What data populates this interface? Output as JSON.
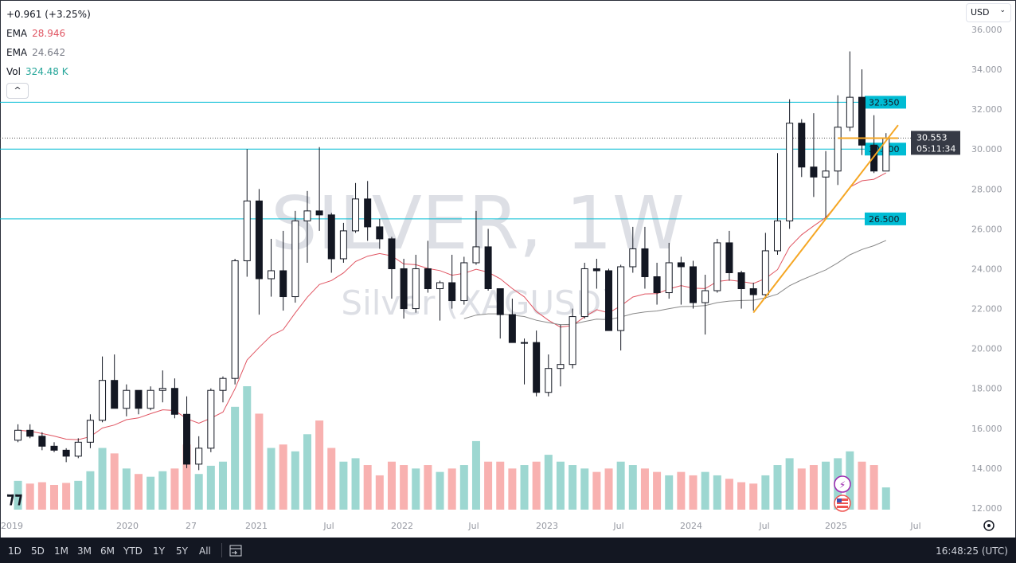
{
  "legend": {
    "change": "+0.961 (+3.25%)",
    "ema1_label": "EMA",
    "ema1_value": "28.946",
    "ema2_label": "EMA",
    "ema2_value": "24.642",
    "vol_label": "Vol",
    "vol_value": "324.48 K",
    "collapse": "^"
  },
  "currency": "USD",
  "watermark": {
    "title": "SILVER, 1W",
    "subtitle": "Silver (XAGUSD)"
  },
  "price_labels": {
    "last": "30.553",
    "countdown": "05:11:34",
    "levels": [
      "32.350",
      "30.000",
      "26.500"
    ]
  },
  "bottombar": {
    "ranges": [
      "1D",
      "5D",
      "1M",
      "3M",
      "6M",
      "YTD",
      "1Y",
      "5Y",
      "All"
    ],
    "clock": "16:48:25 (UTC)"
  },
  "colors": {
    "up": "#26a69a",
    "down": "#ef5350",
    "candle": "#131722",
    "ema_fast": "#e05562",
    "ema_slow": "#888888",
    "level": "#00bcd4",
    "trend": "#f5a623"
  },
  "chart_data": {
    "type": "candlestick",
    "title": "SILVER, 1W",
    "yticks": [
      "36.000",
      "34.000",
      "32.000",
      "30.000",
      "28.000",
      "26.000",
      "24.000",
      "22.000",
      "20.000",
      "18.000",
      "16.000",
      "14.000",
      "12.000"
    ],
    "ylim": [
      12,
      36
    ],
    "xticks": [
      "2019",
      "2020",
      "27",
      "2021",
      "Jul",
      "2022",
      "Jul",
      "2023",
      "Jul",
      "2024",
      "Jul",
      "2025",
      "Jul"
    ],
    "levels": [
      32.35,
      30.0,
      26.5
    ],
    "last_price": 30.553,
    "trendline": {
      "from": [
        "2024-02",
        21.8
      ],
      "to": [
        "2025-02",
        31.2
      ]
    },
    "resistance_segment": {
      "price": 30.55,
      "from": "2024-09",
      "to": "2025-02"
    },
    "columns": [
      "month",
      "open",
      "high",
      "low",
      "close",
      "volume_k"
    ],
    "candles": [
      [
        "2019-01",
        15.4,
        16.2,
        15.3,
        15.9,
        420
      ],
      [
        "2019-02",
        15.9,
        16.2,
        15.5,
        15.6,
        380
      ],
      [
        "2019-03",
        15.6,
        15.8,
        14.9,
        15.1,
        400
      ],
      [
        "2019-04",
        15.1,
        15.3,
        14.8,
        14.9,
        360
      ],
      [
        "2019-05",
        14.9,
        15.0,
        14.3,
        14.6,
        390
      ],
      [
        "2019-06",
        14.6,
        15.5,
        14.5,
        15.3,
        420
      ],
      [
        "2019-07",
        15.3,
        16.7,
        15.0,
        16.4,
        560
      ],
      [
        "2019-08",
        16.4,
        19.6,
        16.3,
        18.4,
        900
      ],
      [
        "2019-09",
        18.4,
        19.7,
        17.0,
        17.0,
        820
      ],
      [
        "2019-10",
        17.0,
        18.2,
        16.6,
        17.9,
        600
      ],
      [
        "2019-11",
        17.9,
        17.9,
        16.7,
        17.0,
        520
      ],
      [
        "2019-12",
        17.0,
        18.1,
        16.9,
        17.9,
        480
      ],
      [
        "2020-01",
        17.9,
        18.9,
        17.3,
        18.0,
        560
      ],
      [
        "2020-02",
        18.0,
        18.5,
        16.5,
        16.7,
        600
      ],
      [
        "2020-03",
        16.7,
        17.6,
        14.0,
        14.2,
        950
      ],
      [
        "2020-04",
        14.2,
        15.6,
        13.9,
        15.0,
        520
      ],
      [
        "2020-05",
        15.0,
        18.0,
        14.8,
        17.9,
        640
      ],
      [
        "2020-06",
        17.9,
        18.6,
        17.3,
        18.5,
        700
      ],
      [
        "2020-07",
        18.5,
        24.5,
        18.2,
        24.4,
        1500
      ],
      [
        "2020-08",
        24.4,
        30.0,
        23.6,
        27.4,
        1800
      ],
      [
        "2020-09",
        27.4,
        28.0,
        21.7,
        23.5,
        1400
      ],
      [
        "2020-10",
        23.5,
        25.5,
        22.6,
        23.9,
        900
      ],
      [
        "2020-11",
        23.9,
        25.9,
        21.9,
        22.6,
        950
      ],
      [
        "2020-12",
        22.6,
        26.9,
        22.3,
        26.4,
        850
      ],
      [
        "2021-01",
        26.4,
        27.9,
        24.3,
        26.9,
        1100
      ],
      [
        "2021-02",
        26.9,
        30.1,
        25.9,
        26.7,
        1300
      ],
      [
        "2021-03",
        26.7,
        26.8,
        23.8,
        24.5,
        900
      ],
      [
        "2021-04",
        24.5,
        26.3,
        24.3,
        25.9,
        700
      ],
      [
        "2021-05",
        25.9,
        28.3,
        25.8,
        27.5,
        750
      ],
      [
        "2021-06",
        27.5,
        28.4,
        25.4,
        26.1,
        650
      ],
      [
        "2021-07",
        26.1,
        26.5,
        25.0,
        25.5,
        500
      ],
      [
        "2021-08",
        25.5,
        25.6,
        22.5,
        24.0,
        700
      ],
      [
        "2021-09",
        24.0,
        24.5,
        21.5,
        22.0,
        650
      ],
      [
        "2021-10",
        22.0,
        24.7,
        21.8,
        24.0,
        600
      ],
      [
        "2021-11",
        24.0,
        25.4,
        22.8,
        23.0,
        650
      ],
      [
        "2021-12",
        23.0,
        23.4,
        21.4,
        23.3,
        550
      ],
      [
        "2022-01",
        23.3,
        24.7,
        22.0,
        22.4,
        600
      ],
      [
        "2022-02",
        22.4,
        24.6,
        22.2,
        24.3,
        650
      ],
      [
        "2022-03",
        24.3,
        26.9,
        24.2,
        25.1,
        1000
      ],
      [
        "2022-04",
        25.1,
        26.0,
        22.9,
        23.0,
        700
      ],
      [
        "2022-05",
        23.0,
        23.0,
        20.5,
        21.7,
        700
      ],
      [
        "2022-06",
        21.7,
        22.5,
        20.5,
        20.3,
        600
      ],
      [
        "2022-07",
        20.3,
        20.5,
        18.2,
        20.3,
        650
      ],
      [
        "2022-08",
        20.3,
        20.9,
        17.6,
        17.8,
        700
      ],
      [
        "2022-09",
        17.8,
        19.7,
        17.6,
        19.0,
        800
      ],
      [
        "2022-10",
        19.0,
        21.2,
        18.1,
        19.2,
        700
      ],
      [
        "2022-11",
        19.2,
        22.0,
        19.0,
        21.6,
        650
      ],
      [
        "2022-12",
        21.6,
        24.3,
        21.5,
        24.0,
        600
      ],
      [
        "2023-01",
        24.0,
        24.5,
        23.0,
        23.9,
        550
      ],
      [
        "2023-02",
        23.9,
        24.0,
        21.0,
        20.9,
        600
      ],
      [
        "2023-03",
        20.9,
        24.2,
        19.9,
        24.1,
        700
      ],
      [
        "2023-04",
        24.1,
        26.1,
        23.8,
        25.0,
        650
      ],
      [
        "2023-05",
        25.0,
        26.1,
        23.0,
        23.6,
        600
      ],
      [
        "2023-06",
        23.6,
        24.3,
        22.2,
        22.8,
        550
      ],
      [
        "2023-07",
        22.8,
        25.3,
        22.5,
        24.3,
        500
      ],
      [
        "2023-08",
        24.3,
        24.6,
        22.2,
        24.1,
        550
      ],
      [
        "2023-09",
        24.1,
        24.4,
        22.0,
        22.3,
        500
      ],
      [
        "2023-10",
        22.3,
        23.7,
        20.7,
        22.9,
        550
      ],
      [
        "2023-11",
        22.9,
        25.5,
        22.8,
        25.3,
        500
      ],
      [
        "2023-12",
        25.3,
        25.9,
        23.4,
        23.8,
        450
      ],
      [
        "2024-01",
        23.8,
        23.9,
        22.0,
        23.0,
        400
      ],
      [
        "2024-02",
        23.0,
        23.3,
        21.9,
        22.7,
        380
      ],
      [
        "2024-03",
        22.7,
        25.8,
        22.5,
        24.9,
        500
      ],
      [
        "2024-04",
        24.9,
        29.8,
        24.7,
        26.4,
        650
      ],
      [
        "2024-05",
        26.4,
        32.5,
        26.0,
        31.3,
        750
      ],
      [
        "2024-06",
        31.3,
        31.5,
        28.6,
        29.1,
        600
      ],
      [
        "2024-07",
        29.1,
        31.8,
        27.6,
        28.6,
        650
      ],
      [
        "2024-08",
        28.6,
        29.9,
        26.5,
        28.9,
        700
      ],
      [
        "2024-09",
        28.9,
        32.7,
        28.2,
        31.1,
        750
      ],
      [
        "2024-10",
        31.1,
        34.9,
        30.9,
        32.6,
        850
      ],
      [
        "2024-11",
        32.6,
        34.0,
        29.7,
        30.2,
        700
      ],
      [
        "2024-12",
        30.2,
        31.7,
        28.8,
        28.9,
        650
      ],
      [
        "2025-01",
        28.9,
        30.8,
        29.0,
        30.55,
        324.48
      ]
    ]
  }
}
